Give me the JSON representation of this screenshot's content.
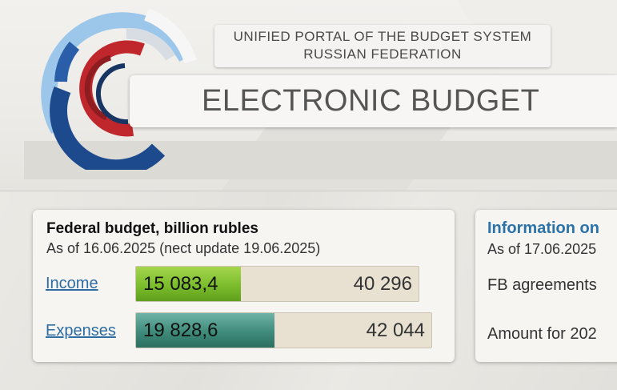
{
  "header": {
    "subtitle_line1": "UNIFIED PORTAL OF THE BUDGET SYSTEM",
    "subtitle_line2": "RUSSIAN FEDERATION",
    "title": "ELECTRONIC BUDGET",
    "logo_icon": "circular-arcs-logo-icon",
    "colors": {
      "logo_blue": "#1c4a8c",
      "logo_red": "#c0272d",
      "logo_light_blue": "#9cc6ea"
    }
  },
  "budget_card": {
    "title": "Federal budget, billion rubles",
    "as_of": "As of 16.06.2025 (nect update 19.06.2025)",
    "rows": [
      {
        "label": "Income",
        "value": "15 083,4",
        "total": "40 296",
        "fill_fraction": 0.37,
        "color": "#7bbd2c"
      },
      {
        "label": "Expenses",
        "value": "19 828,6",
        "total": "42 044",
        "fill_fraction": 0.47,
        "color": "#3f8b7b"
      }
    ]
  },
  "info_card": {
    "title": "Information on",
    "as_of": "As of 17.06.2025",
    "rows": [
      "FB agreements",
      "Amount for 202"
    ]
  }
}
